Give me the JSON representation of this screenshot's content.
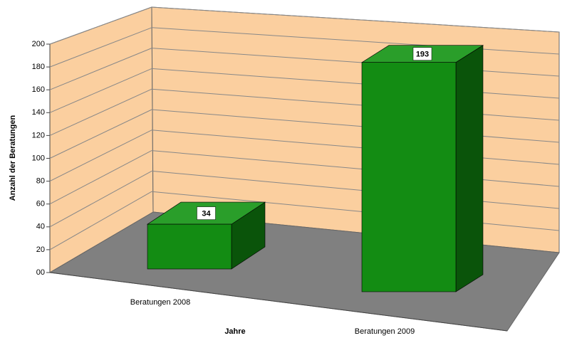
{
  "chart_data": {
    "type": "bar3d",
    "categories": [
      "Beratungen 2008",
      "Beratungen 2009"
    ],
    "values": [
      34,
      193
    ],
    "color": "#138c13",
    "ylim": [
      0,
      200
    ],
    "yticks": [
      {
        "value": 0,
        "label": "00"
      },
      20,
      40,
      60,
      80,
      100,
      120,
      140,
      160,
      180,
      200
    ],
    "ylabel": "Anzahl der Beratungen",
    "xlabel": "Jahre",
    "grid": true
  }
}
